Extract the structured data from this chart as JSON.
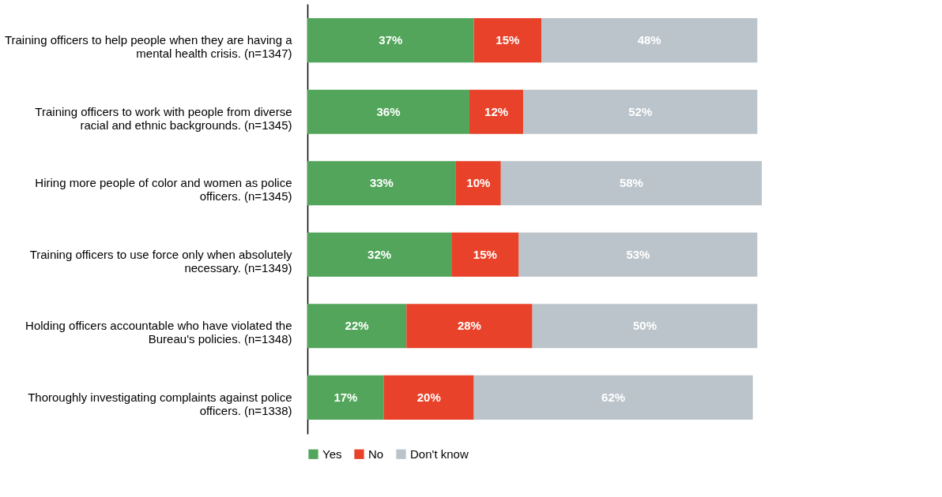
{
  "chart_data": {
    "type": "bar",
    "orientation": "horizontal",
    "stacked": true,
    "legend": "bottom",
    "categories": [
      "Training officers to help people when they are having a mental health crisis. (n=1347)",
      "Training officers to work with people from diverse racial and ethnic backgrounds. (n=1345)",
      "Hiring more people of color and women as police officers. (n=1345)",
      "Training officers to use force only when absolutely necessary. (n=1349)",
      "Holding officers accountable who have violated the Bureau's policies. (n=1348)",
      "Thoroughly investigating complaints against police officers. (n=1338)"
    ],
    "series": [
      {
        "name": "Yes",
        "color": "#52a55a",
        "values": [
          37,
          36,
          33,
          32,
          22,
          17
        ],
        "value_labels": [
          "37%",
          "36%",
          "33%",
          "32%",
          "22%",
          "17%"
        ]
      },
      {
        "name": "No",
        "color": "#e8432a",
        "values": [
          15,
          12,
          10,
          15,
          28,
          20
        ],
        "value_labels": [
          "15%",
          "12%",
          "10%",
          "15%",
          "28%",
          "20%"
        ]
      },
      {
        "name": "Don't know",
        "color": "#bbc4ca",
        "values": [
          48,
          52,
          58,
          53,
          50,
          62
        ],
        "value_labels": [
          "48%",
          "52%",
          "58%",
          "53%",
          "50%",
          "62%"
        ]
      }
    ]
  }
}
